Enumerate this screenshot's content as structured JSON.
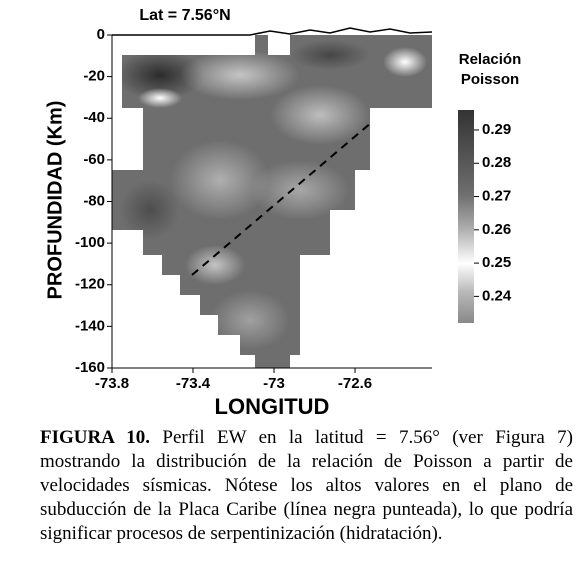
{
  "chart_data": {
    "type": "contour",
    "title": "Lat = 7.56°N",
    "xlabel": "LONGITUD",
    "ylabel": "PROFUNDIDAD (Km)",
    "xlim": [
      -73.8,
      -72.22
    ],
    "xticks": [
      -73.8,
      -73.4,
      -73,
      -72.6
    ],
    "ylim": [
      -160,
      0
    ],
    "yticks": [
      0,
      -20,
      -40,
      -60,
      -80,
      -100,
      -120,
      -140,
      -160
    ],
    "colorbar_label": [
      "Relación",
      "Poisson"
    ],
    "clim": [
      0.232,
      0.296
    ],
    "cticks": [
      0.29,
      0.28,
      0.27,
      0.26,
      0.25,
      0.24
    ]
  },
  "caption": {
    "label": "FIGURA 10.",
    "text": "Perfil EW en la latitud = 7.56° (ver Figura 7) mostrando la distribución de la relación de Poisson a partir de velocidades sísmicas. Nótese los altos valores en el plano de subducción de la Placa Caribe (línea negra punteada), lo que podría significar procesos de serpentinización (hidratación)."
  }
}
